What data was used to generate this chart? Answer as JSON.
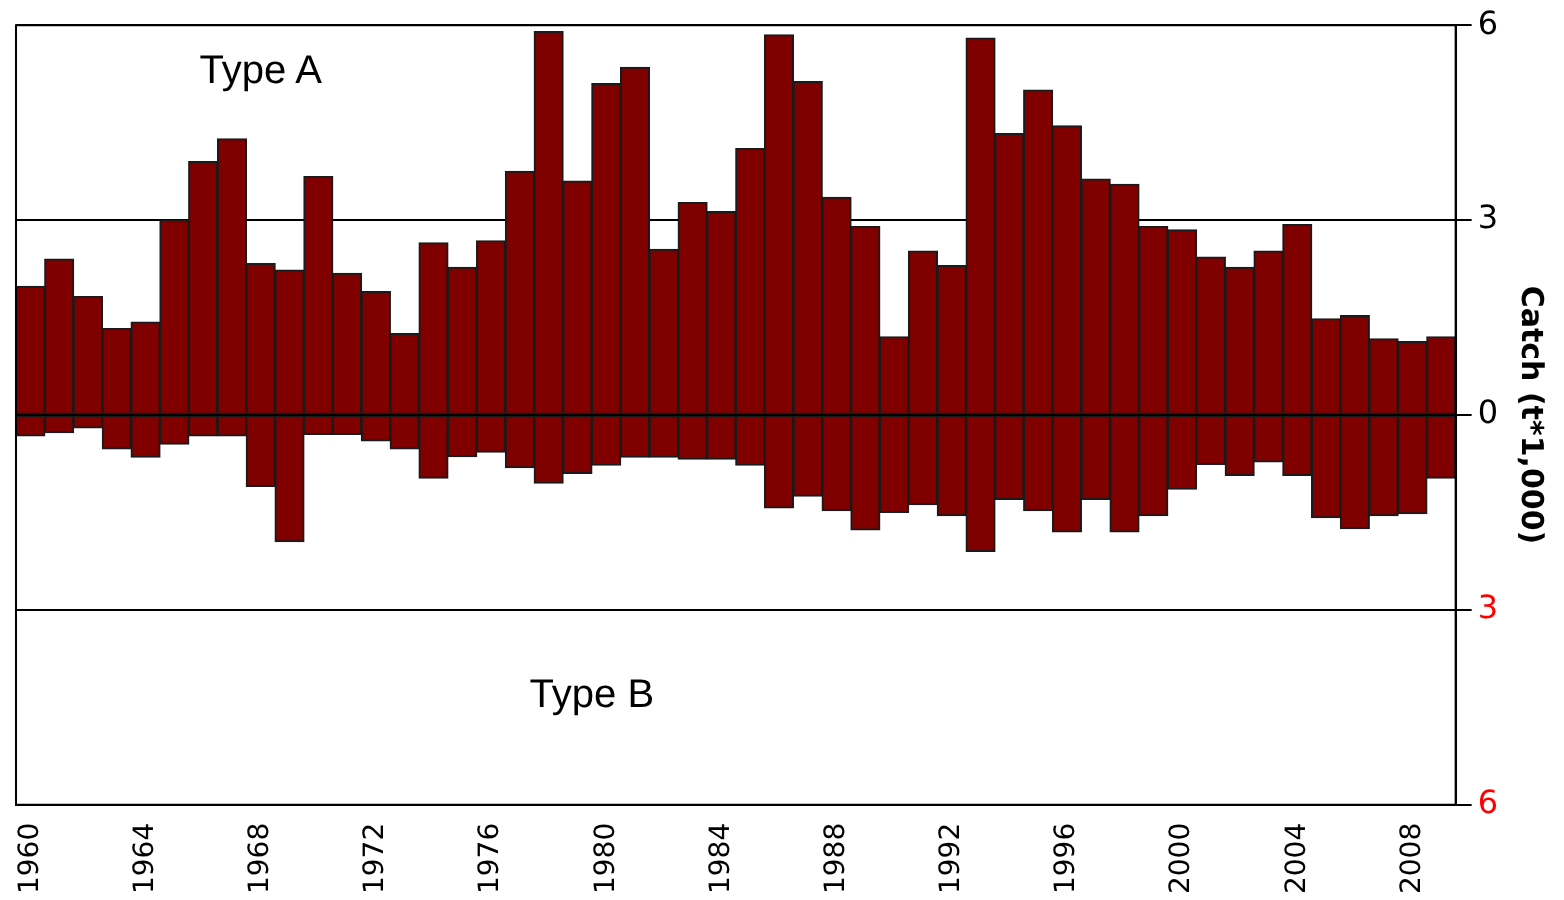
{
  "chart_data": {
    "type": "bar",
    "stacked": true,
    "ylabel": "Catch (t*1,000)",
    "categories": [
      "1960",
      null,
      null,
      null,
      "1964",
      null,
      null,
      null,
      "1968",
      null,
      null,
      null,
      "1972",
      null,
      null,
      null,
      "1976",
      null,
      null,
      null,
      "1980",
      null,
      null,
      null,
      "1984",
      null,
      null,
      null,
      "1988",
      null,
      null,
      null,
      "1992",
      null,
      null,
      null,
      "1996",
      null,
      null,
      null,
      "2000",
      null,
      null,
      null,
      "2004",
      null,
      null,
      null,
      "2008",
      null
    ],
    "series": [
      {
        "color": "#800000",
        "values": [
          1.98,
          2.4,
          1.82,
          1.33,
          1.43,
          3.0,
          3.9,
          4.25,
          2.33,
          2.23,
          3.67,
          2.18,
          1.9,
          1.25,
          2.65,
          2.27,
          2.68,
          3.75,
          5.9,
          3.6,
          5.1,
          5.35,
          2.55,
          3.27,
          3.13,
          4.1,
          5.85,
          5.13,
          3.35,
          2.9,
          1.2,
          2.52,
          2.3,
          5.8,
          4.33,
          5.0,
          4.45,
          3.63,
          3.55,
          2.9,
          2.85,
          2.43,
          2.27,
          2.52,
          2.93,
          1.48,
          1.53,
          1.17,
          1.13,
          1.2
        ]
      },
      {
        "color": "#800000",
        "values": [
          -0.32,
          -0.27,
          -0.2,
          -0.52,
          -0.65,
          -0.45,
          -0.32,
          -0.32,
          -1.1,
          -1.95,
          -0.3,
          -0.3,
          -0.4,
          -0.52,
          -0.97,
          -0.64,
          -0.57,
          -0.81,
          -1.05,
          -0.9,
          -0.77,
          -0.65,
          -0.65,
          -0.68,
          -0.68,
          -0.77,
          -1.43,
          -1.25,
          -1.47,
          -1.77,
          -1.5,
          -1.38,
          -1.55,
          -2.1,
          -1.3,
          -1.47,
          -1.8,
          -1.3,
          -1.8,
          -1.55,
          -1.14,
          -0.76,
          -0.93,
          -0.72,
          -0.93,
          -1.58,
          -1.75,
          -1.55,
          -1.52,
          -0.97
        ]
      }
    ],
    "ylim": [
      -6,
      6
    ],
    "yticks": [
      {
        "value": -6,
        "label": "6"
      },
      {
        "value": -3,
        "label": "3"
      },
      0,
      3,
      6
    ],
    "annotations": [
      "Type A",
      "Type B"
    ],
    "grid": "y",
    "legend": false
  }
}
